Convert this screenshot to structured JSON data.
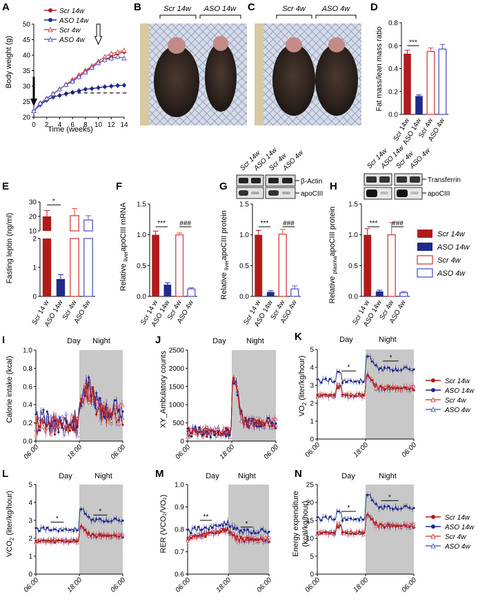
{
  "panels": {
    "A": {
      "label": "A",
      "ylabel": "Body weight (g)",
      "xlabel": "Time (weeks)",
      "legend": [
        "Scr 14w",
        "ASO 14w",
        "Scr 4w",
        "ASO 4w"
      ],
      "stars": "***"
    },
    "B": {
      "label": "B",
      "left_label": "Scr 14w",
      "right_label": "ASO 14w"
    },
    "C": {
      "label": "C",
      "left_label": "Scr 4w",
      "right_label": "ASO 4w"
    },
    "D": {
      "label": "D",
      "ylabel": "Fat mass/lean mass ratio",
      "sig": "***"
    },
    "E": {
      "label": "E",
      "ylabel": "Fasting leptin (ng/ml)",
      "sig": "*"
    },
    "F": {
      "label": "F",
      "ylabel_pre": "Relative ",
      "ylabel_sub": "liver",
      "ylabel_post": "apoCIII mRNA",
      "sig1": "***",
      "sig2": "###"
    },
    "G": {
      "label": "G",
      "ylabel_pre": "Relative ",
      "ylabel_sub": "liver",
      "ylabel_post": "apoCIII protein",
      "sig1": "***",
      "sig2": "###",
      "blot_labels": [
        "β-Actin",
        "apoCIII"
      ],
      "lane_labels": [
        "Scr 14w",
        "ASO 14w",
        "Scr 4w",
        "ASO 4w"
      ]
    },
    "H": {
      "label": "H",
      "ylabel_pre": "Relative ",
      "ylabel_sub": "plasma",
      "ylabel_post": "apoCIII protein",
      "sig1": "***",
      "sig2": "###",
      "blot_labels": [
        "Transferrin",
        "apoCIII"
      ],
      "lane_labels": [
        "Scr 14w",
        "ASO 14w",
        "Scr 4w",
        "ASO 4w"
      ]
    },
    "I": {
      "label": "I",
      "ylabel": "Calorie intake (kcal)",
      "day": "Day",
      "night": "Night"
    },
    "J": {
      "label": "J",
      "ylabel": "XY_Ambulatory counts",
      "day": "Day",
      "night": "Night"
    },
    "K": {
      "label": "K",
      "ylabel_pre": "VO",
      "ylabel_sub": "2",
      "ylabel_post": " (liter/kg/hour)",
      "day": "Day",
      "night": "Night",
      "sig": "*"
    },
    "L": {
      "label": "L",
      "ylabel_pre": "VCO",
      "ylabel_sub": "2",
      "ylabel_post": " (liter/kg/hour)",
      "day": "Day",
      "night": "Night",
      "sig": "*"
    },
    "M": {
      "label": "M",
      "ylabel": "RER (VCO₂/VO₂)",
      "day": "Day",
      "night": "Night",
      "sig1": "**",
      "sig2": "*"
    },
    "N": {
      "label": "N",
      "ylabel": "Energy expenditure",
      "ylabel2": "(kcal/kg/hour)",
      "day": "Day",
      "night": "Night",
      "sig": "*"
    }
  },
  "group_legend": [
    "Scr 14w",
    "ASO 14w",
    "Scr 4w",
    "ASO 4w"
  ],
  "group_ticks": [
    "Scr 14w",
    "ASO 14w",
    "Scr 4w",
    "ASO 4w"
  ],
  "group_ticks_E": [
    "Scr 14 w",
    "ASO 14w",
    "Scr 4w",
    "ASO 4w"
  ],
  "time_ticks": [
    "06:00",
    "18:00",
    "06:00"
  ],
  "colors": {
    "scr14": "#b01c1c",
    "aso14": "#1f2a8c",
    "scr4": "#d94a4a",
    "aso4": "#5a62c8",
    "night": "#c8c8c8"
  },
  "chart_data": [
    {
      "panel": "A",
      "type": "line",
      "x": [
        0,
        1,
        2,
        3,
        4,
        5,
        6,
        7,
        8,
        9,
        10,
        11,
        12,
        13,
        14
      ],
      "xlim": [
        0,
        14
      ],
      "ylim": [
        20,
        50
      ],
      "xticks": [
        0,
        2,
        4,
        6,
        8,
        10,
        12,
        14
      ],
      "yticks": [
        20,
        25,
        30,
        35,
        40,
        45,
        50
      ],
      "series": [
        {
          "name": "Scr 14w",
          "values": [
            22,
            24.5,
            26,
            27.5,
            29,
            30.5,
            32,
            33.5,
            35,
            36,
            37.5,
            38.5,
            39.5,
            40.5,
            41
          ]
        },
        {
          "name": "ASO 14w",
          "values": [
            22,
            24,
            25.5,
            26.5,
            27,
            27.5,
            28,
            28.5,
            29,
            29.2,
            29.5,
            29.8,
            30,
            30.2,
            30.3
          ]
        },
        {
          "name": "Scr 4w",
          "values": [
            22,
            24.5,
            26,
            27.5,
            29,
            30.5,
            32,
            33.5,
            35,
            36.5,
            38,
            39.5,
            40.5,
            41,
            41.5
          ]
        },
        {
          "name": "ASO 4w",
          "values": [
            22,
            24.5,
            26,
            27.5,
            29,
            30.5,
            31.5,
            33,
            34.5,
            36,
            37.5,
            38.5,
            39,
            39.5,
            39
          ]
        }
      ]
    },
    {
      "panel": "D",
      "type": "bar",
      "categories": [
        "Scr 14w",
        "ASO 14w",
        "Scr 4w",
        "ASO 4w"
      ],
      "values": [
        0.53,
        0.16,
        0.55,
        0.57
      ],
      "errors": [
        0.03,
        0.01,
        0.03,
        0.04
      ],
      "ylim": [
        0,
        0.8
      ],
      "yticks": [
        0,
        0.2,
        0.4,
        0.6,
        0.8
      ]
    },
    {
      "panel": "E",
      "type": "bar",
      "categories": [
        "Scr 14 w",
        "ASO 14w",
        "Scr 4w",
        "ASO 4w"
      ],
      "values": [
        20,
        0.6,
        20.5,
        17.5
      ],
      "errors": [
        4,
        0.15,
        5,
        3
      ],
      "yticks": [
        0,
        1,
        2,
        10,
        20,
        30
      ],
      "note": "broken y-axis"
    },
    {
      "panel": "F",
      "type": "bar",
      "categories": [
        "Scr 14 w",
        "ASO 14w",
        "Scr 4w",
        "ASO 4w"
      ],
      "values": [
        1.0,
        0.19,
        1.0,
        0.12
      ],
      "errors": [
        0.06,
        0.03,
        0.03,
        0.02
      ],
      "ylim": [
        0,
        1.5
      ],
      "yticks": [
        0,
        0.5,
        1.0,
        1.5
      ]
    },
    {
      "panel": "G",
      "type": "bar",
      "categories": [
        "Scr 14 w",
        "ASO 14w",
        "Scr 4w",
        "ASO 4w"
      ],
      "values": [
        1.0,
        0.07,
        1.01,
        0.12
      ],
      "errors": [
        0.07,
        0.02,
        0.08,
        0.05
      ],
      "ylim": [
        0,
        1.5
      ],
      "yticks": [
        0,
        0.5,
        1.0,
        1.5
      ]
    },
    {
      "panel": "H",
      "type": "bar",
      "categories": [
        "Scr 14 w",
        "ASO 14w",
        "Scr 4w",
        "ASO 4w"
      ],
      "values": [
        1.0,
        0.08,
        1.0,
        0.06
      ],
      "errors": [
        0.1,
        0.02,
        0.2,
        0.02
      ],
      "ylim": [
        0,
        1.5
      ],
      "yticks": [
        0,
        0.5,
        1.0,
        1.5
      ]
    },
    {
      "panel": "I",
      "type": "line",
      "ylim": [
        0,
        1.0
      ],
      "yticks": [
        0,
        0.2,
        0.4,
        0.6,
        0.8,
        1.0
      ],
      "series_names": [
        "Scr 14w",
        "ASO 14w",
        "Scr 4w",
        "ASO 4w"
      ]
    },
    {
      "panel": "J",
      "type": "line",
      "ylim": [
        0,
        2500
      ],
      "yticks": [
        0,
        500,
        1000,
        1500,
        2000,
        2500
      ]
    },
    {
      "panel": "K",
      "type": "line",
      "ylim": [
        0,
        5
      ],
      "yticks": [
        0,
        1,
        2,
        3,
        4,
        5
      ]
    },
    {
      "panel": "L",
      "type": "line",
      "ylim": [
        0,
        5
      ],
      "yticks": [
        0,
        1,
        2,
        3,
        4,
        5
      ]
    },
    {
      "panel": "M",
      "type": "line",
      "ylim": [
        0.6,
        1.0
      ],
      "yticks": [
        0.6,
        0.7,
        0.8,
        0.9,
        1.0
      ]
    },
    {
      "panel": "N",
      "type": "line",
      "ylim": [
        0,
        25
      ],
      "yticks": [
        0,
        5,
        10,
        15,
        20,
        25
      ]
    }
  ]
}
